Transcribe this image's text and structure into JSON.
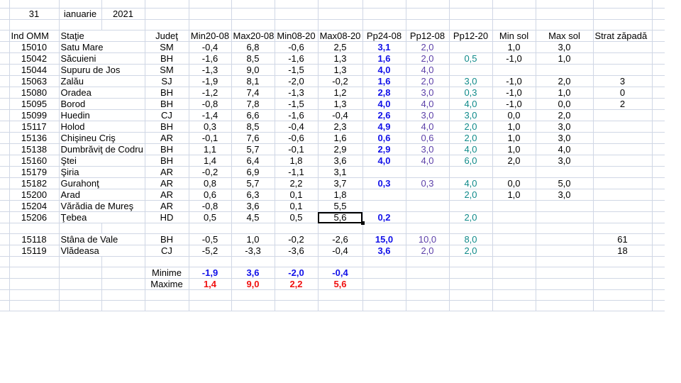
{
  "date": {
    "day": "31",
    "month": "ianuarie",
    "year": "2021"
  },
  "headers": {
    "id": "Ind OMM",
    "station": "Staţie",
    "county": "Judeţ",
    "min2008": "Min20-08",
    "max2008": "Max20-08",
    "min0820": "Min08-20",
    "max0820": "Max08-20",
    "pp2408": "Pp24-08",
    "pp1208": "Pp12-08",
    "pp1220": "Pp12-20",
    "minsol": "Min sol",
    "maxsol": "Max sol",
    "snow": "Strat zăpadă"
  },
  "stations": [
    {
      "id": "15010",
      "station": "Satu Mare",
      "county": "SM",
      "min2008": "-0,4",
      "max2008": "6,8",
      "min0820": "-0,6",
      "max0820": "2,5",
      "pp2408": "3,1",
      "pp1208": "2,0",
      "pp1220": "",
      "minsol": "1,0",
      "maxsol": "3,0",
      "snow": ""
    },
    {
      "id": "15042",
      "station": "Săcuieni",
      "county": "BH",
      "min2008": "-1,6",
      "max2008": "8,5",
      "min0820": "-1,6",
      "max0820": "1,3",
      "pp2408": "1,6",
      "pp1208": "2,0",
      "pp1220": "0,5",
      "minsol": "-1,0",
      "maxsol": "1,0",
      "snow": ""
    },
    {
      "id": "15044",
      "station": "Supuru de Jos",
      "county": "SM",
      "min2008": "-1,3",
      "max2008": "9,0",
      "min0820": "-1,5",
      "max0820": "1,3",
      "pp2408": "4,0",
      "pp1208": "4,0",
      "pp1220": "",
      "minsol": "",
      "maxsol": "",
      "snow": ""
    },
    {
      "id": "15063",
      "station": "Zalău",
      "county": "SJ",
      "min2008": "-1,9",
      "max2008": "8,1",
      "min0820": "-2,0",
      "max0820": "-0,2",
      "pp2408": "1,6",
      "pp1208": "2,0",
      "pp1220": "3,0",
      "minsol": "-1,0",
      "maxsol": "2,0",
      "snow": "3"
    },
    {
      "id": "15080",
      "station": "Oradea",
      "county": "BH",
      "min2008": "-1,2",
      "max2008": "7,4",
      "min0820": "-1,3",
      "max0820": "1,2",
      "pp2408": "2,8",
      "pp1208": "3,0",
      "pp1220": "0,3",
      "minsol": "-1,0",
      "maxsol": "1,0",
      "snow": "0"
    },
    {
      "id": "15095",
      "station": "Borod",
      "county": "BH",
      "min2008": "-0,8",
      "max2008": "7,8",
      "min0820": "-1,5",
      "max0820": "1,3",
      "pp2408": "4,0",
      "pp1208": "4,0",
      "pp1220": "4,0",
      "minsol": "-1,0",
      "maxsol": "0,0",
      "snow": "2"
    },
    {
      "id": "15099",
      "station": "Huedin",
      "county": "CJ",
      "min2008": "-1,4",
      "max2008": "6,6",
      "min0820": "-1,6",
      "max0820": "-0,4",
      "pp2408": "2,6",
      "pp1208": "3,0",
      "pp1220": "3,0",
      "minsol": "0,0",
      "maxsol": "2,0",
      "snow": ""
    },
    {
      "id": "15117",
      "station": "Holod",
      "county": "BH",
      "min2008": "0,3",
      "max2008": "8,5",
      "min0820": "-0,4",
      "max0820": "2,3",
      "pp2408": "4,9",
      "pp1208": "4,0",
      "pp1220": "2,0",
      "minsol": "1,0",
      "maxsol": "3,0",
      "snow": ""
    },
    {
      "id": "15136",
      "station": "Chişineu   Criş",
      "county": "AR",
      "min2008": "-0,1",
      "max2008": "7,6",
      "min0820": "-0,6",
      "max0820": "1,6",
      "pp2408": "0,6",
      "pp1208": "0,6",
      "pp1220": "2,0",
      "minsol": "1,0",
      "maxsol": "3,0",
      "snow": ""
    },
    {
      "id": "15138",
      "station": "Dumbrăviţ  de Codru",
      "county": "BH",
      "min2008": "1,1",
      "max2008": "5,7",
      "min0820": "-0,1",
      "max0820": "2,9",
      "pp2408": "2,9",
      "pp1208": "3,0",
      "pp1220": "4,0",
      "minsol": "1,0",
      "maxsol": "4,0",
      "snow": ""
    },
    {
      "id": "15160",
      "station": "Ştei",
      "county": "BH",
      "min2008": "1,4",
      "max2008": "6,4",
      "min0820": "1,8",
      "max0820": "3,6",
      "pp2408": "4,0",
      "pp1208": "4,0",
      "pp1220": "6,0",
      "minsol": "2,0",
      "maxsol": "3,0",
      "snow": ""
    },
    {
      "id": "15179",
      "station": "Şiria",
      "county": "AR",
      "min2008": "-0,2",
      "max2008": "6,9",
      "min0820": "-1,1",
      "max0820": "3,1",
      "pp2408": "",
      "pp1208": "",
      "pp1220": "",
      "minsol": "",
      "maxsol": "",
      "snow": ""
    },
    {
      "id": "15182",
      "station": "Gurahonţ",
      "county": "AR",
      "min2008": "0,8",
      "max2008": "5,7",
      "min0820": "2,2",
      "max0820": "3,7",
      "pp2408": "0,3",
      "pp1208": "0,3",
      "pp1220": "4,0",
      "minsol": "0,0",
      "maxsol": "5,0",
      "snow": ""
    },
    {
      "id": "15200",
      "station": "Arad",
      "county": "AR",
      "min2008": "0,6",
      "max2008": "6,3",
      "min0820": "0,1",
      "max0820": "1,8",
      "pp2408": "",
      "pp1208": "",
      "pp1220": "2,0",
      "minsol": "1,0",
      "maxsol": "3,0",
      "snow": ""
    },
    {
      "id": "15204",
      "station": "Vărădia de Mureş",
      "county": "AR",
      "min2008": "-0,8",
      "max2008": "3,6",
      "min0820": "0,1",
      "max0820": "5,5",
      "pp2408": "",
      "pp1208": "",
      "pp1220": "",
      "minsol": "",
      "maxsol": "",
      "snow": ""
    },
    {
      "id": "15206",
      "station": "Ţebea",
      "county": "HD",
      "min2008": "0,5",
      "max2008": "4,5",
      "min0820": "0,5",
      "max0820": "5,6",
      "pp2408": "0,2",
      "pp1208": "",
      "pp1220": "2,0",
      "minsol": "",
      "maxsol": "",
      "snow": ""
    }
  ],
  "mountain_stations": [
    {
      "id": "15118",
      "station": "Stâna de Vale",
      "county": "BH",
      "min2008": "-0,5",
      "max2008": "1,0",
      "min0820": "-0,2",
      "max0820": "-2,6",
      "pp2408": "15,0",
      "pp1208": "10,0",
      "pp1220": "8,0",
      "minsol": "",
      "maxsol": "",
      "snow": "61"
    },
    {
      "id": "15119",
      "station": "Vlădeasa",
      "county": "CJ",
      "min2008": "-5,2",
      "max2008": "-3,3",
      "min0820": "-3,6",
      "max0820": "-0,4",
      "pp2408": "3,6",
      "pp1208": "2,0",
      "pp1220": "2,0",
      "minsol": "",
      "maxsol": "",
      "snow": "18"
    }
  ],
  "summary": {
    "min": {
      "label": "Minime",
      "min2008": "-1,9",
      "max2008": "3,6",
      "min0820": "-2,0",
      "max0820": "-0,4"
    },
    "max": {
      "label": "Maxime",
      "min2008": "1,4",
      "max2008": "9,0",
      "min0820": "2,2",
      "max0820": "5,6"
    }
  },
  "selected_cell": "Ţebea / Max08-20",
  "colors": {
    "pp24": "#1010e8",
    "pp12": "#5b3fa8",
    "pp1220": "#0f8a8a",
    "minime": "#1010e8",
    "maxime": "#f01010",
    "grid": "#d0d7e5"
  }
}
